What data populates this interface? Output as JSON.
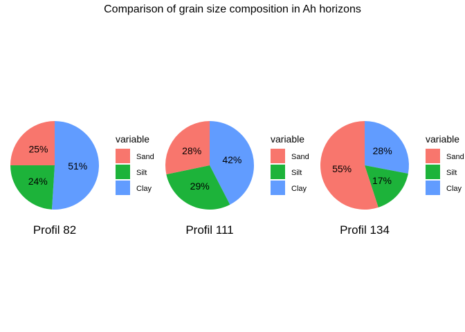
{
  "chart_data": {
    "type": "pie",
    "title": "Comparison of grain size composition in Ah horizons",
    "legend": {
      "title": "variable",
      "placement": "right of each pie",
      "entries": [
        {
          "label": "Sand",
          "color": "#F8766D"
        },
        {
          "label": "Silt",
          "color": "#1DB33A"
        },
        {
          "label": "Clay",
          "color": "#619CFF"
        }
      ]
    },
    "pies": [
      {
        "caption": "Profil 82",
        "slices": [
          {
            "name": "Sand",
            "value": 25,
            "label": "25%"
          },
          {
            "name": "Silt",
            "value": 24,
            "label": "24%"
          },
          {
            "name": "Clay",
            "value": 51,
            "label": "51%"
          }
        ]
      },
      {
        "caption": "Profil 111",
        "slices": [
          {
            "name": "Sand",
            "value": 28,
            "label": "28%"
          },
          {
            "name": "Silt",
            "value": 29,
            "label": "29%"
          },
          {
            "name": "Clay",
            "value": 42,
            "label": "42%"
          }
        ]
      },
      {
        "caption": "Profil 134",
        "slices": [
          {
            "name": "Sand",
            "value": 55,
            "label": "55%"
          },
          {
            "name": "Silt",
            "value": 17,
            "label": "17%"
          },
          {
            "name": "Clay",
            "value": 28,
            "label": "28%"
          }
        ]
      }
    ]
  }
}
